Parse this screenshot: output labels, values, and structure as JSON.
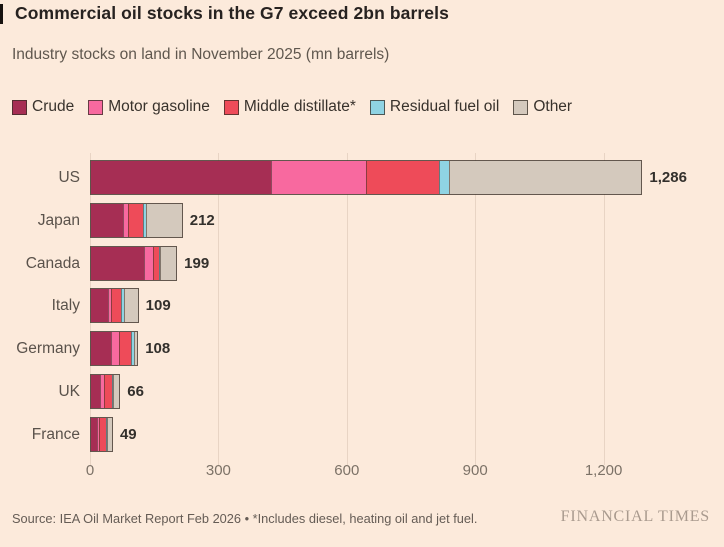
{
  "title": "Commercial oil stocks in the G7 exceed 2bn barrels",
  "subtitle": "Industry stocks on land in November 2025 (mn barrels)",
  "legend": [
    {
      "label": "Crude",
      "key": "crude"
    },
    {
      "label": "Motor gasoline",
      "key": "motor_gasoline"
    },
    {
      "label": "Middle distillate*",
      "key": "middle_distillate"
    },
    {
      "label": "Residual fuel oil",
      "key": "residual_fuel_oil"
    },
    {
      "label": "Other",
      "key": "other"
    }
  ],
  "colors": {
    "background": "#fceadb",
    "crude": "#a62e54",
    "motor_gasoline": "#f8699f",
    "middle_distillate": "#ee4b59",
    "residual_fuel_oil": "#8fd3e3",
    "other": "#d4c9bd",
    "gridline": "#e8d4c4",
    "title_text": "#272220",
    "muted_text": "#5f574e",
    "tick_text": "#7c7267",
    "watermark_text": "#a99a8e"
  },
  "chart_data": {
    "type": "bar",
    "orientation": "horizontal",
    "stacked": true,
    "categories": [
      "US",
      "Japan",
      "Canada",
      "Italy",
      "Germany",
      "UK",
      "France"
    ],
    "series": [
      {
        "name": "Crude",
        "key": "crude",
        "values": [
          421,
          74,
          125,
          39,
          47,
          21,
          15
        ]
      },
      {
        "name": "Motor gasoline",
        "key": "motor_gasoline",
        "values": [
          222,
          12,
          19,
          8,
          19,
          9,
          4
        ]
      },
      {
        "name": "Middle distillate*",
        "key": "middle_distillate",
        "values": [
          170,
          35,
          16,
          22,
          27,
          20,
          18
        ]
      },
      {
        "name": "Residual fuel oil",
        "key": "residual_fuel_oil",
        "values": [
          24,
          7,
          2,
          9,
          7,
          2,
          1
        ]
      },
      {
        "name": "Other",
        "key": "other",
        "values": [
          449,
          84,
          37,
          31,
          8,
          14,
          11
        ]
      }
    ],
    "totals": [
      1286,
      212,
      199,
      109,
      108,
      66,
      49
    ],
    "total_labels": [
      "1,286",
      "212",
      "199",
      "109",
      "108",
      "66",
      "49"
    ],
    "x_ticks": {
      "values": [
        0,
        300,
        600,
        900,
        1200
      ],
      "labels": [
        "0",
        "300",
        "600",
        "900",
        "1,200"
      ]
    },
    "xlim": [
      0,
      1430
    ],
    "grid": true,
    "legend_position": "top"
  },
  "footer": {
    "source": "Source: IEA Oil Market Report Feb 2026 • *Includes diesel, heating oil and jet fuel.",
    "watermark": "FINANCIAL TIMES"
  }
}
